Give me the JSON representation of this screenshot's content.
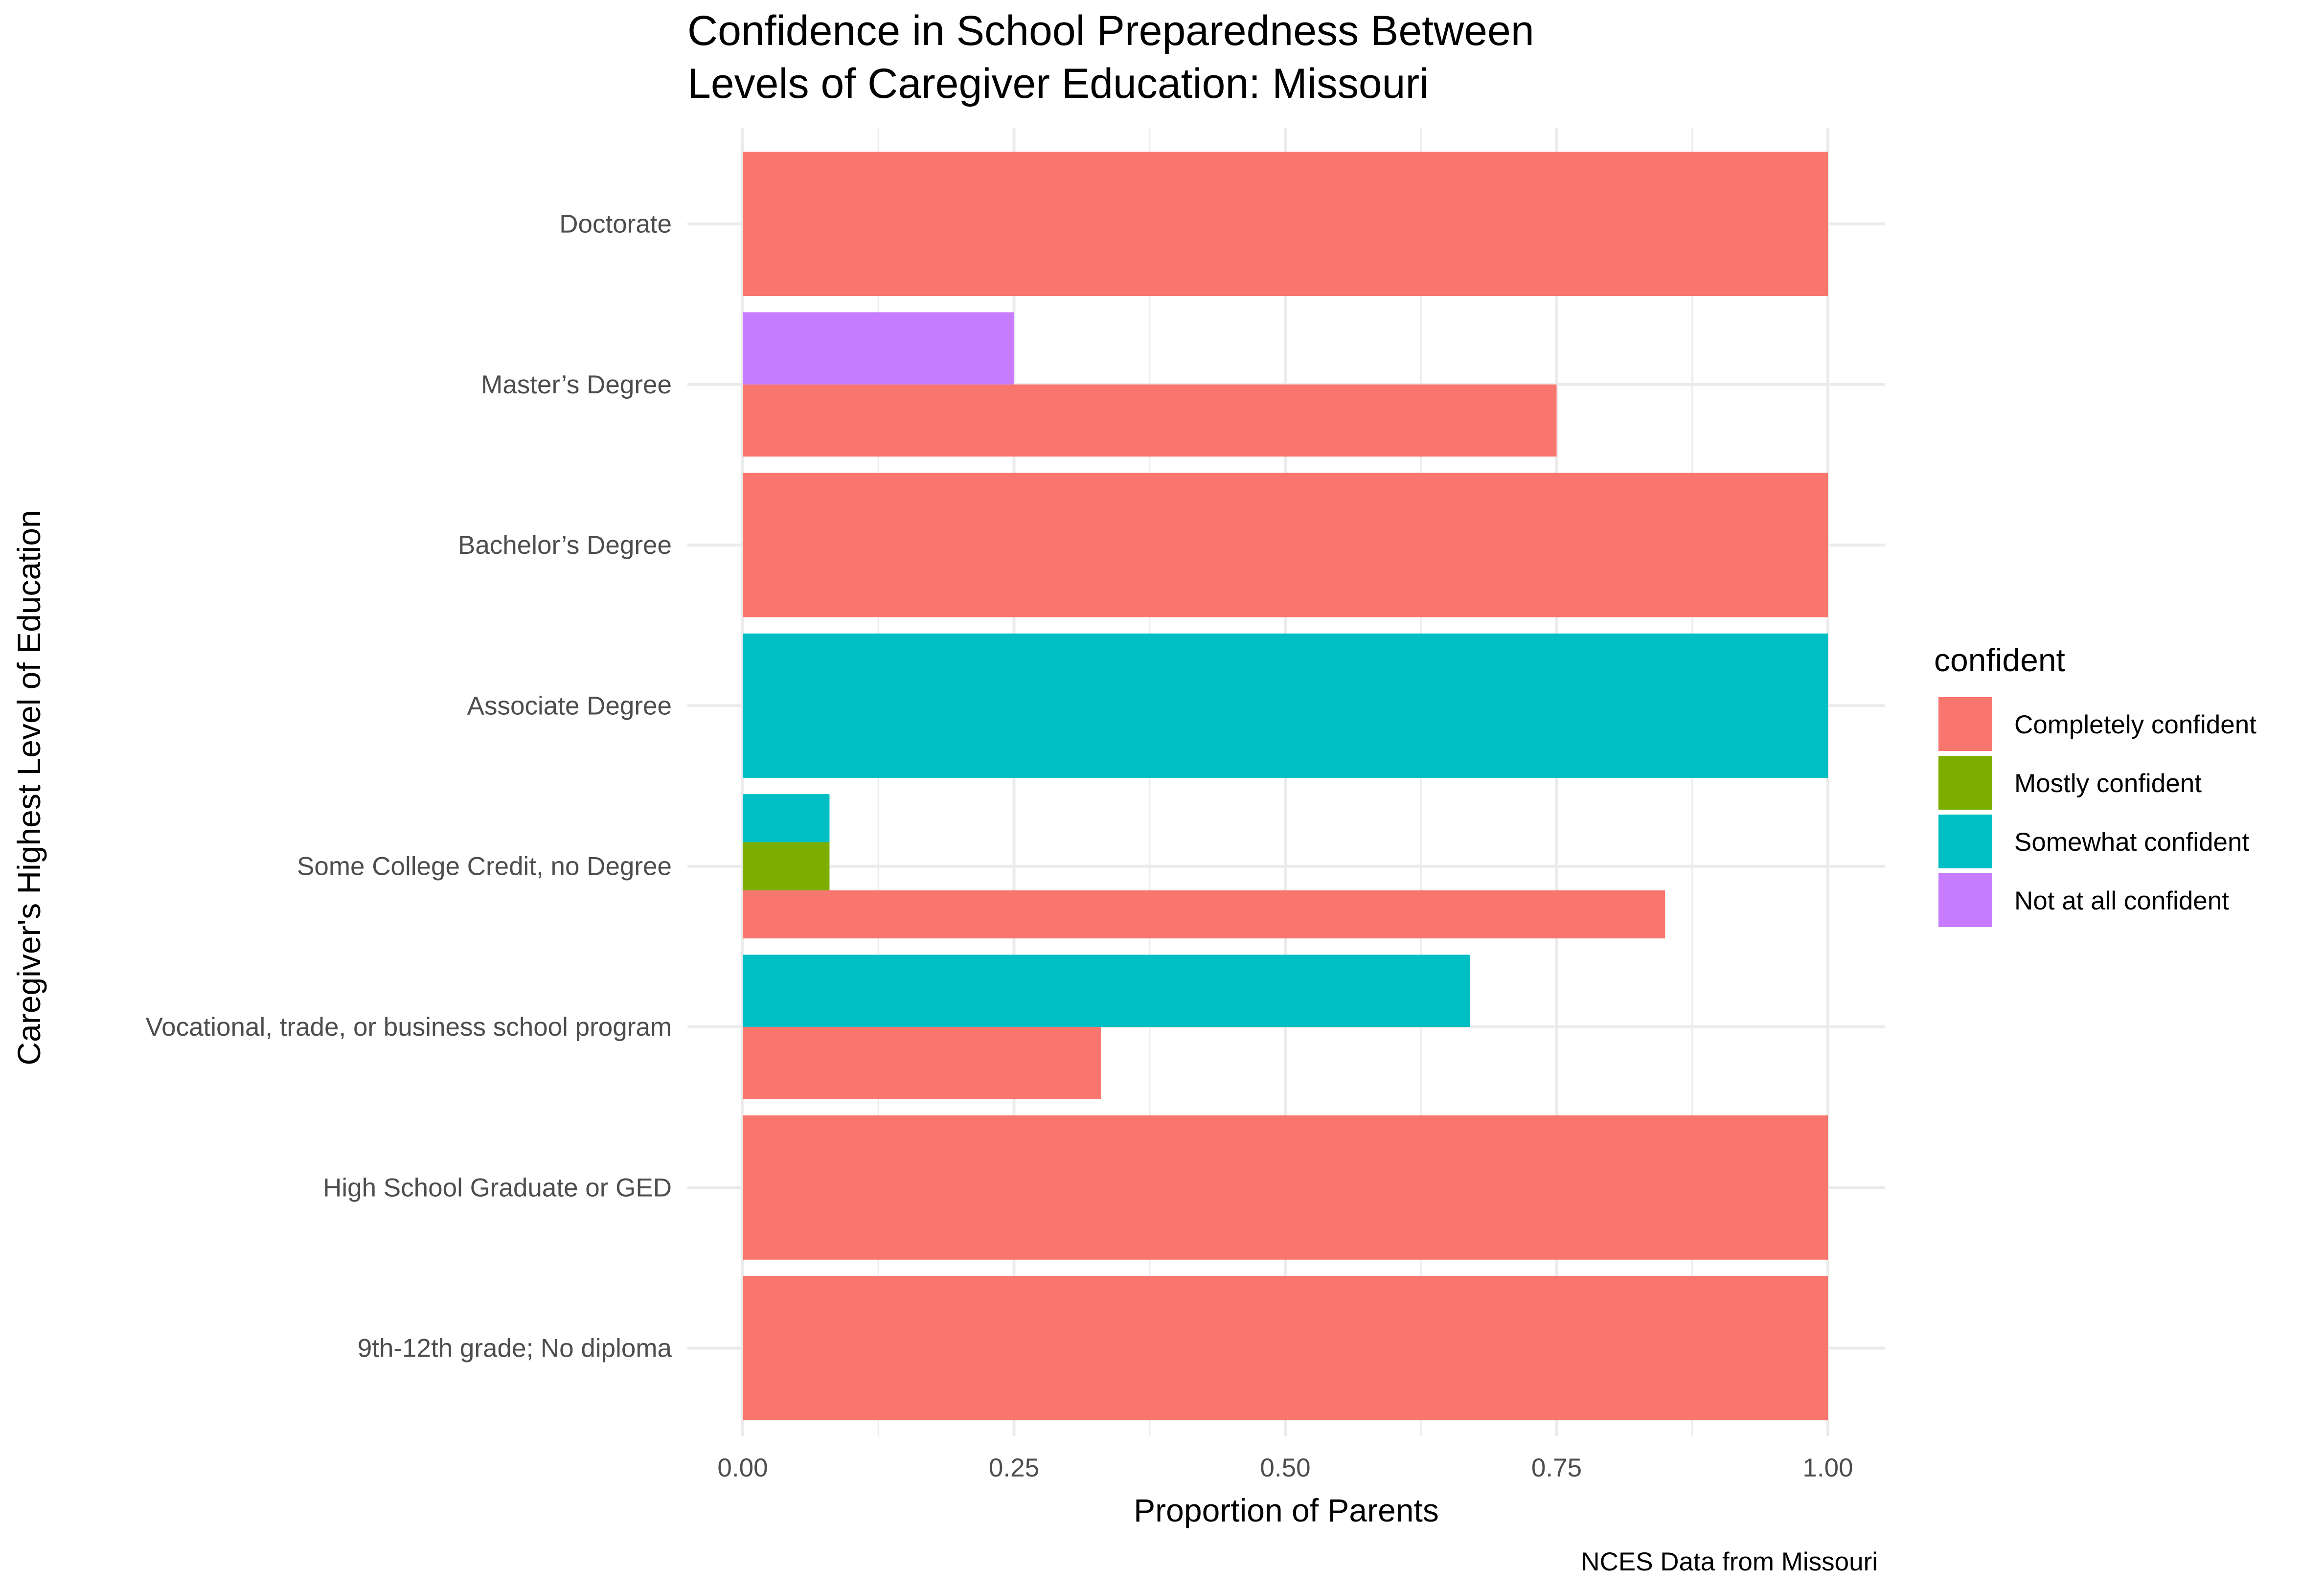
{
  "chart_data": {
    "type": "bar",
    "orientation": "horizontal",
    "position": "dodge",
    "title_lines": [
      "Confidence in School Preparedness Between",
      "Levels of Caregiver Education: Missouri"
    ],
    "xlabel": "Proportion of Parents",
    "ylabel": "Caregiver's Highest Level of Education",
    "caption": "NCES Data from Missouri",
    "xlim": [
      0,
      1
    ],
    "x_ticks": [
      "0.00",
      "0.25",
      "0.50",
      "0.75",
      "1.00"
    ],
    "categories": [
      "Doctorate",
      "Master’s Degree",
      "Bachelor’s Degree",
      "Associate Degree",
      "Some College Credit, no Degree",
      "Vocational, trade, or business school program",
      "High School Graduate or GED",
      "9th-12th grade; No diploma"
    ],
    "legend": {
      "title": "confident",
      "position": "right",
      "entries": [
        {
          "label": "Completely confident",
          "color": "#F8766D"
        },
        {
          "label": "Mostly confident",
          "color": "#7CAE00"
        },
        {
          "label": "Somewhat confident",
          "color": "#00BFC4"
        },
        {
          "label": "Not at all confident",
          "color": "#C77CFF"
        }
      ]
    },
    "bars": [
      {
        "category": "Doctorate",
        "level": "Completely confident",
        "value": 1.0,
        "slot": 0,
        "slots": 1
      },
      {
        "category": "Master’s Degree",
        "level": "Completely confident",
        "value": 0.75,
        "slot": 0,
        "slots": 2
      },
      {
        "category": "Master’s Degree",
        "level": "Not at all confident",
        "value": 0.25,
        "slot": 1,
        "slots": 2
      },
      {
        "category": "Bachelor’s Degree",
        "level": "Completely confident",
        "value": 1.0,
        "slot": 0,
        "slots": 1
      },
      {
        "category": "Associate Degree",
        "level": "Somewhat confident",
        "value": 1.0,
        "slot": 0,
        "slots": 1
      },
      {
        "category": "Some College Credit, no Degree",
        "level": "Completely confident",
        "value": 0.85,
        "slot": 0,
        "slots": 3
      },
      {
        "category": "Some College Credit, no Degree",
        "level": "Mostly confident",
        "value": 0.08,
        "slot": 1,
        "slots": 3
      },
      {
        "category": "Some College Credit, no Degree",
        "level": "Somewhat confident",
        "value": 0.08,
        "slot": 2,
        "slots": 3
      },
      {
        "category": "Vocational, trade, or business school program",
        "level": "Completely confident",
        "value": 0.33,
        "slot": 0,
        "slots": 2
      },
      {
        "category": "Vocational, trade, or business school program",
        "level": "Somewhat confident",
        "value": 0.67,
        "slot": 1,
        "slots": 2
      },
      {
        "category": "High School Graduate or GED",
        "level": "Completely confident",
        "value": 1.0,
        "slot": 0,
        "slots": 1
      },
      {
        "category": "9th-12th grade; No diploma",
        "level": "Completely confident",
        "value": 1.0,
        "slot": 0,
        "slots": 1
      }
    ],
    "grid": true
  }
}
